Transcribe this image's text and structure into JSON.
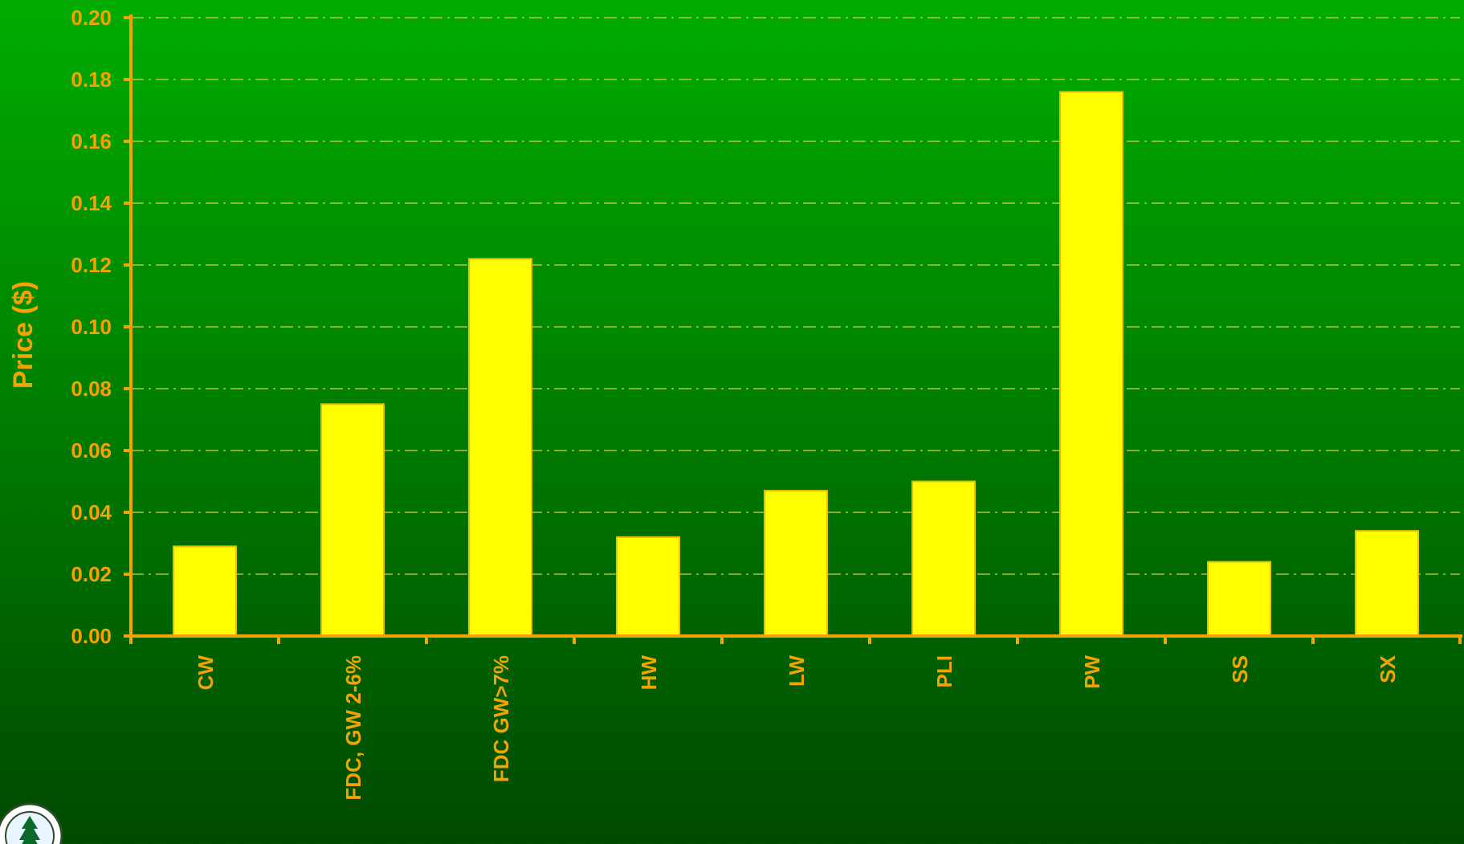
{
  "colors": {
    "axis": "#f5a300",
    "label": "#f5a300",
    "bar_fill": "#ffff00",
    "bar_stroke": "#e8c000",
    "grid": "#d8d24a"
  },
  "logo": {
    "icon": "tree-seal-icon"
  },
  "chart_data": {
    "type": "bar",
    "title": "",
    "xlabel": "",
    "ylabel": "Price ($)",
    "categories": [
      "CW",
      "FDC, GW 2-6%",
      "FDC GW>7%",
      "HW",
      "LW",
      "PLI",
      "PW",
      "SS",
      "SX"
    ],
    "values": [
      0.029,
      0.075,
      0.122,
      0.032,
      0.047,
      0.05,
      0.176,
      0.024,
      0.034
    ],
    "ylim": [
      0,
      0.2
    ],
    "yticks": [
      "0.00",
      "0.02",
      "0.04",
      "0.06",
      "0.08",
      "0.10",
      "0.12",
      "0.14",
      "0.16",
      "0.18",
      "0.20"
    ],
    "grid": "horizontal dash-dot",
    "legend": "none"
  }
}
